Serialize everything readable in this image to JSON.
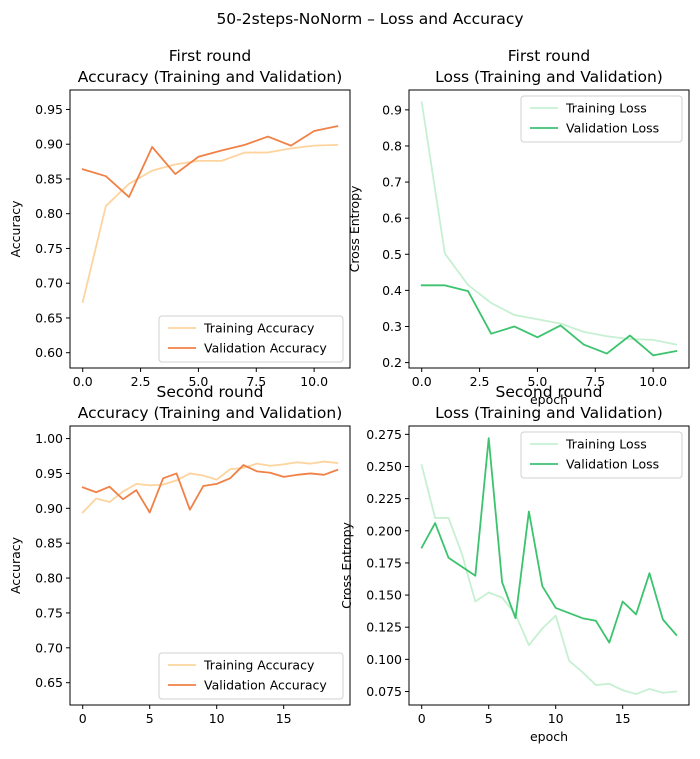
{
  "figure": {
    "suptitle": "50-2steps-NoNorm – Loss and Accuracy"
  },
  "colors": {
    "training_accuracy": "#fdd49e",
    "validation_accuracy": "#f08147",
    "training_loss": "#c7f0d2",
    "validation_loss": "#3cc36e"
  },
  "chart_data": [
    {
      "type": "line",
      "title": "First round\nAccuracy (Training and Validation)",
      "xlabel": "",
      "ylabel": "Accuracy",
      "xlim": [
        -0.55,
        11.55
      ],
      "ylim": [
        0.578,
        0.978
      ],
      "xticks": [
        0,
        2.5,
        5,
        7.5,
        10
      ],
      "xtick_labels": [
        "0.0",
        "2.5",
        "5.0",
        "7.5",
        "10.0"
      ],
      "yticks": [
        0.6,
        0.65,
        0.7,
        0.75,
        0.8,
        0.85,
        0.9,
        0.95
      ],
      "ytick_labels": [
        "0.60",
        "0.65",
        "0.70",
        "0.75",
        "0.80",
        "0.85",
        "0.90",
        "0.95"
      ],
      "grid": false,
      "legend_position": "lower-right",
      "x": [
        0,
        1,
        2,
        3,
        4,
        5,
        6,
        7,
        8,
        9,
        10,
        11
      ],
      "series": [
        {
          "name": "Training Accuracy",
          "color": "#fdd49e",
          "values": [
            0.673,
            0.811,
            0.843,
            0.862,
            0.871,
            0.876,
            0.876,
            0.888,
            0.888,
            0.894,
            0.898,
            0.899
          ]
        },
        {
          "name": "Validation Accuracy",
          "color": "#f08147",
          "values": [
            0.864,
            0.854,
            0.824,
            0.896,
            0.857,
            0.882,
            0.891,
            0.899,
            0.911,
            0.898,
            0.919,
            0.926
          ]
        }
      ]
    },
    {
      "type": "line",
      "title": "First round\nLoss (Training and Validation)",
      "xlabel": "epoch",
      "ylabel": "Cross Entropy",
      "xlim": [
        -0.55,
        11.55
      ],
      "ylim": [
        0.185,
        0.955
      ],
      "xticks": [
        0,
        2.5,
        5,
        7.5,
        10
      ],
      "xtick_labels": [
        "0.0",
        "2.5",
        "5.0",
        "7.5",
        "10.0"
      ],
      "yticks": [
        0.2,
        0.3,
        0.4,
        0.5,
        0.6,
        0.7,
        0.8,
        0.9
      ],
      "ytick_labels": [
        "0.2",
        "0.3",
        "0.4",
        "0.5",
        "0.6",
        "0.7",
        "0.8",
        "0.9"
      ],
      "grid": false,
      "legend_position": "upper-right",
      "x": [
        0,
        1,
        2,
        3,
        4,
        5,
        6,
        7,
        8,
        9,
        10,
        11
      ],
      "series": [
        {
          "name": "Training Loss",
          "color": "#c7f0d2",
          "values": [
            0.921,
            0.502,
            0.415,
            0.365,
            0.332,
            0.32,
            0.308,
            0.285,
            0.273,
            0.265,
            0.263,
            0.25
          ]
        },
        {
          "name": "Validation Loss",
          "color": "#3cc36e",
          "values": [
            0.414,
            0.414,
            0.398,
            0.28,
            0.3,
            0.27,
            0.303,
            0.25,
            0.225,
            0.275,
            0.22,
            0.232
          ]
        }
      ]
    },
    {
      "type": "line",
      "title": "Second round\nAccuracy (Training and Validation)",
      "xlabel": "",
      "ylabel": "Accuracy",
      "xlim": [
        -0.95,
        19.95
      ],
      "ylim": [
        0.618,
        1.018
      ],
      "xticks": [
        0,
        5,
        10,
        15
      ],
      "xtick_labels": [
        "0",
        "5",
        "10",
        "15"
      ],
      "yticks": [
        0.65,
        0.7,
        0.75,
        0.8,
        0.85,
        0.9,
        0.95,
        1.0
      ],
      "ytick_labels": [
        "0.65",
        "0.70",
        "0.75",
        "0.80",
        "0.85",
        "0.90",
        "0.95",
        "1.00"
      ],
      "grid": false,
      "legend_position": "lower-right",
      "x": [
        0,
        1,
        2,
        3,
        4,
        5,
        6,
        7,
        8,
        9,
        10,
        11,
        12,
        13,
        14,
        15,
        16,
        17,
        18,
        19
      ],
      "series": [
        {
          "name": "Training Accuracy",
          "color": "#fdd49e",
          "values": [
            0.894,
            0.914,
            0.909,
            0.924,
            0.935,
            0.933,
            0.934,
            0.94,
            0.95,
            0.947,
            0.941,
            0.956,
            0.958,
            0.964,
            0.961,
            0.963,
            0.966,
            0.964,
            0.967,
            0.965
          ]
        },
        {
          "name": "Validation Accuracy",
          "color": "#f08147",
          "values": [
            0.93,
            0.923,
            0.931,
            0.913,
            0.926,
            0.894,
            0.943,
            0.95,
            0.898,
            0.932,
            0.935,
            0.943,
            0.962,
            0.953,
            0.951,
            0.945,
            0.948,
            0.95,
            0.948,
            0.955
          ]
        }
      ]
    },
    {
      "type": "line",
      "title": "Second round\nLoss (Training and Validation)",
      "xlabel": "epoch",
      "ylabel": "Cross Entropy",
      "xlim": [
        -0.95,
        19.95
      ],
      "ylim": [
        0.0645,
        0.2815
      ],
      "xticks": [
        0,
        5,
        10,
        15
      ],
      "xtick_labels": [
        "0",
        "5",
        "10",
        "15"
      ],
      "yticks": [
        0.075,
        0.1,
        0.125,
        0.15,
        0.175,
        0.2,
        0.225,
        0.25,
        0.275
      ],
      "ytick_labels": [
        "0.075",
        "0.100",
        "0.125",
        "0.150",
        "0.175",
        "0.200",
        "0.225",
        "0.250",
        "0.275"
      ],
      "grid": false,
      "legend_position": "upper-right",
      "x": [
        0,
        1,
        2,
        3,
        4,
        5,
        6,
        7,
        8,
        9,
        10,
        11,
        12,
        13,
        14,
        15,
        16,
        17,
        18,
        19
      ],
      "series": [
        {
          "name": "Training Loss",
          "color": "#c7f0d2",
          "values": [
            0.251,
            0.21,
            0.21,
            0.182,
            0.145,
            0.152,
            0.148,
            0.135,
            0.111,
            0.124,
            0.134,
            0.099,
            0.09,
            0.08,
            0.081,
            0.076,
            0.073,
            0.077,
            0.074,
            0.075
          ]
        },
        {
          "name": "Validation Loss",
          "color": "#3cc36e",
          "values": [
            0.187,
            0.206,
            0.179,
            0.172,
            0.165,
            0.272,
            0.16,
            0.132,
            0.215,
            0.157,
            0.14,
            0.136,
            0.132,
            0.13,
            0.113,
            0.145,
            0.135,
            0.167,
            0.131,
            0.119
          ]
        }
      ]
    }
  ]
}
